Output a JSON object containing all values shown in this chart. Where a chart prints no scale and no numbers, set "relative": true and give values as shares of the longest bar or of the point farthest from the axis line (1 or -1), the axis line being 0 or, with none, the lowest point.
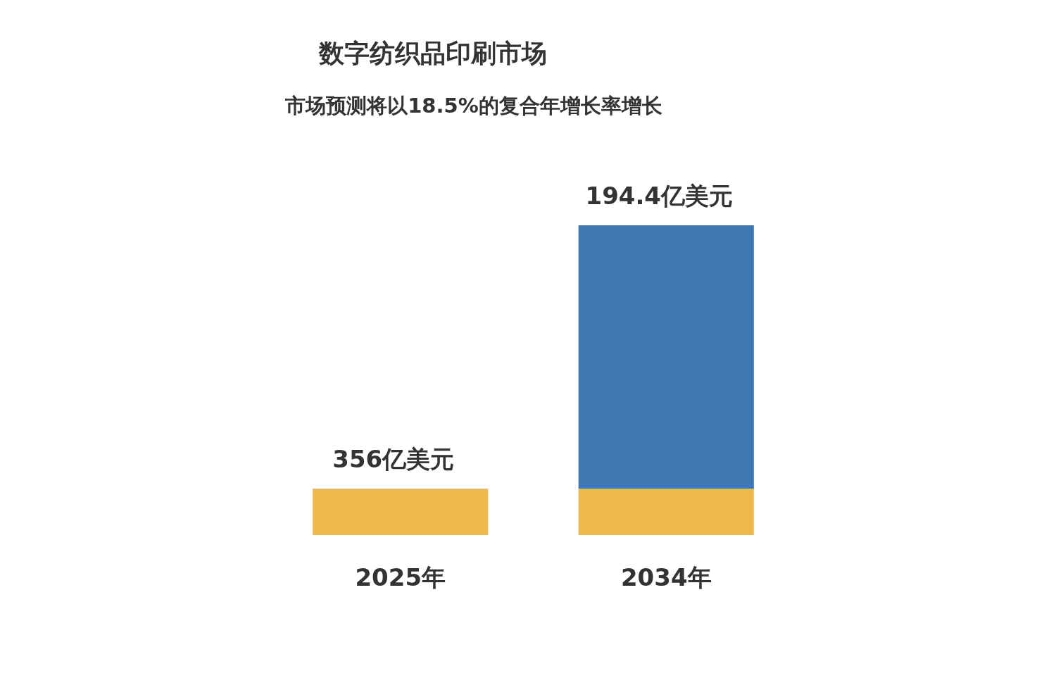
{
  "chart_data": {
    "type": "bar",
    "title": "数字纺织品印刷市场",
    "subtitle": "市场预测将以18.5%的复合年增长率增长",
    "categories": [
      "2025年",
      "2034年"
    ],
    "stacked": true,
    "relative": true,
    "series": [
      {
        "color": "#f0b94e",
        "values": [
          0.15,
          0.15
        ]
      },
      {
        "color": "#3f78b2",
        "values": [
          null,
          0.85
        ]
      }
    ],
    "annotations": [
      {
        "text": "356亿美元",
        "x": "2025年",
        "y": 0.15
      },
      {
        "text": "194.4亿美元",
        "x": "2034年",
        "y": 1
      }
    ]
  }
}
